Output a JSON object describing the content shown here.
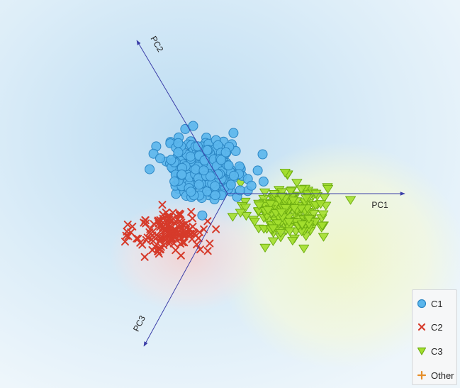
{
  "chart_data": {
    "type": "scatter",
    "subtype": "biplot",
    "axes": [
      "PC1",
      "PC2",
      "PC3"
    ],
    "colors": {
      "C1": "#5bb6ec",
      "C2": "#d63a2a",
      "C3": "#a3df2e",
      "Other": "#e58e2a"
    },
    "legend": {
      "position": "bottom-right",
      "entries": [
        "C1",
        "C2",
        "C3",
        "Other"
      ]
    },
    "series": [
      {
        "name": "C1",
        "marker": "circle",
        "center": [
          -0.3,
          0.35
        ],
        "spread": [
          0.55,
          0.4
        ],
        "count": 330
      },
      {
        "name": "C2",
        "marker": "x",
        "center": [
          -0.8,
          -0.55
        ],
        "spread": [
          0.5,
          0.3
        ],
        "count": 150
      },
      {
        "name": "C3",
        "marker": "triangle-down",
        "center": [
          0.85,
          -0.25
        ],
        "spread": [
          0.55,
          0.4
        ],
        "count": 220
      },
      {
        "name": "Other",
        "marker": "plus",
        "count": 0
      }
    ]
  }
}
